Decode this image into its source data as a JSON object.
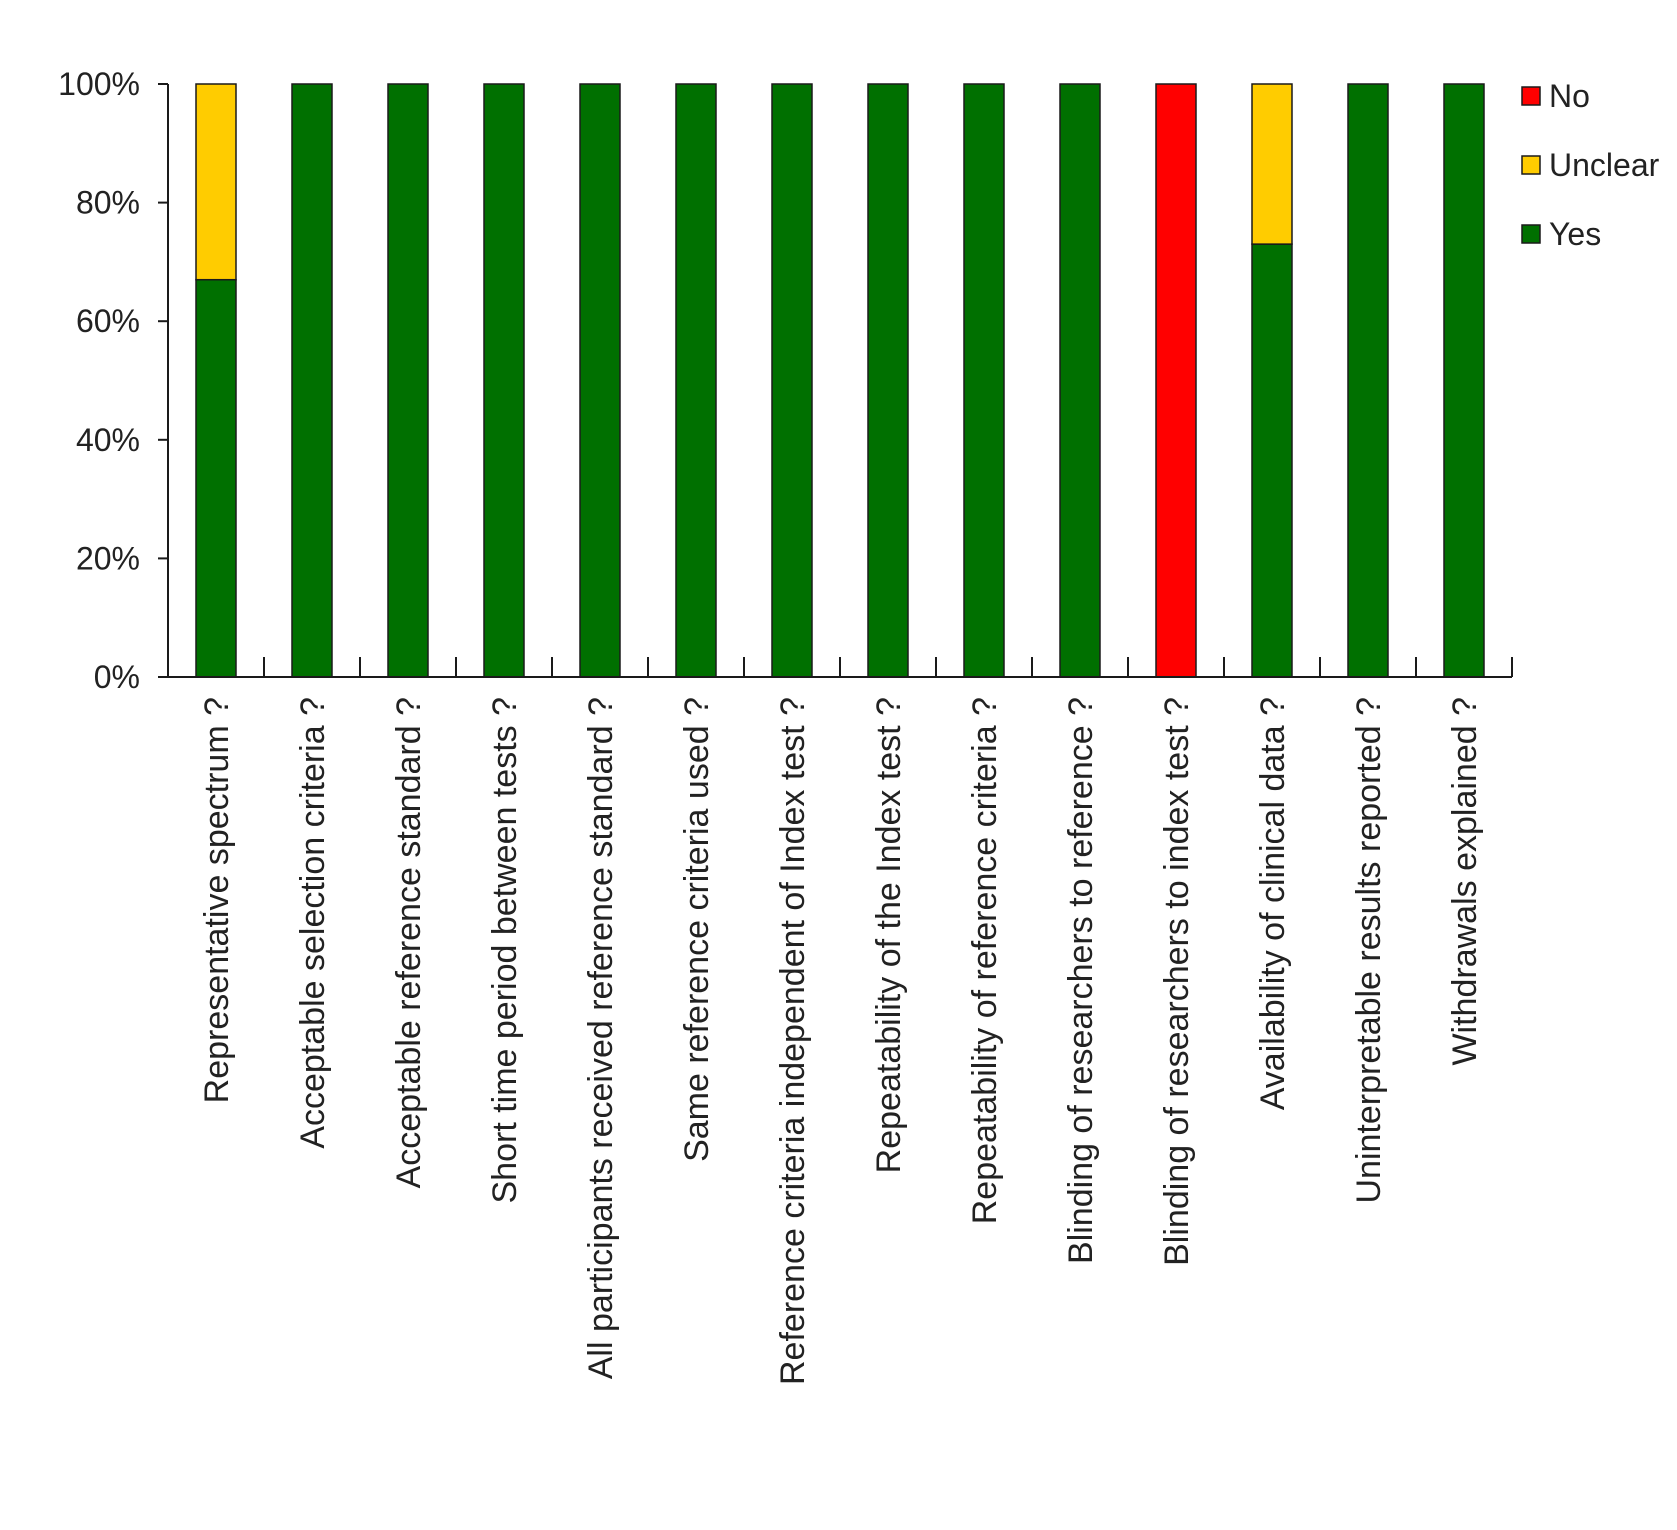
{
  "chart_data": {
    "type": "bar",
    "stacked": true,
    "title": "",
    "xlabel": "",
    "ylabel": "",
    "ylim": [
      0,
      100
    ],
    "y_ticks": [
      "0%",
      "20%",
      "40%",
      "60%",
      "80%",
      "100%"
    ],
    "grid": false,
    "legend_position": "right",
    "categories": [
      "Representative spectrum ?",
      "Acceptable selection criteria ?",
      "Acceptable reference standard ?",
      "Short time period between tests ?",
      "All participants received reference standard ?",
      "Same reference criteria used ?",
      "Reference criteria independent of Index test ?",
      "Repeatability of the Index test ?",
      "Repeatability of reference criteria ?",
      "Blinding of researchers to reference ?",
      "Blinding of researchers to index test ?",
      "Availability of clinical data ?",
      "Uninterpretable results reported ?",
      "Withdrawals explained ?"
    ],
    "series": [
      {
        "name": "Yes",
        "color": "#007000",
        "values": [
          67,
          100,
          100,
          100,
          100,
          100,
          100,
          100,
          100,
          100,
          0,
          73,
          100,
          100
        ]
      },
      {
        "name": "Unclear",
        "color": "#ffcc00",
        "values": [
          33,
          0,
          0,
          0,
          0,
          0,
          0,
          0,
          0,
          0,
          0,
          27,
          0,
          0
        ]
      },
      {
        "name": "No",
        "color": "#ff0000",
        "values": [
          0,
          0,
          0,
          0,
          0,
          0,
          0,
          0,
          0,
          0,
          100,
          0,
          0,
          0
        ]
      }
    ],
    "legend_order": [
      "No",
      "Unclear",
      "Yes"
    ]
  }
}
